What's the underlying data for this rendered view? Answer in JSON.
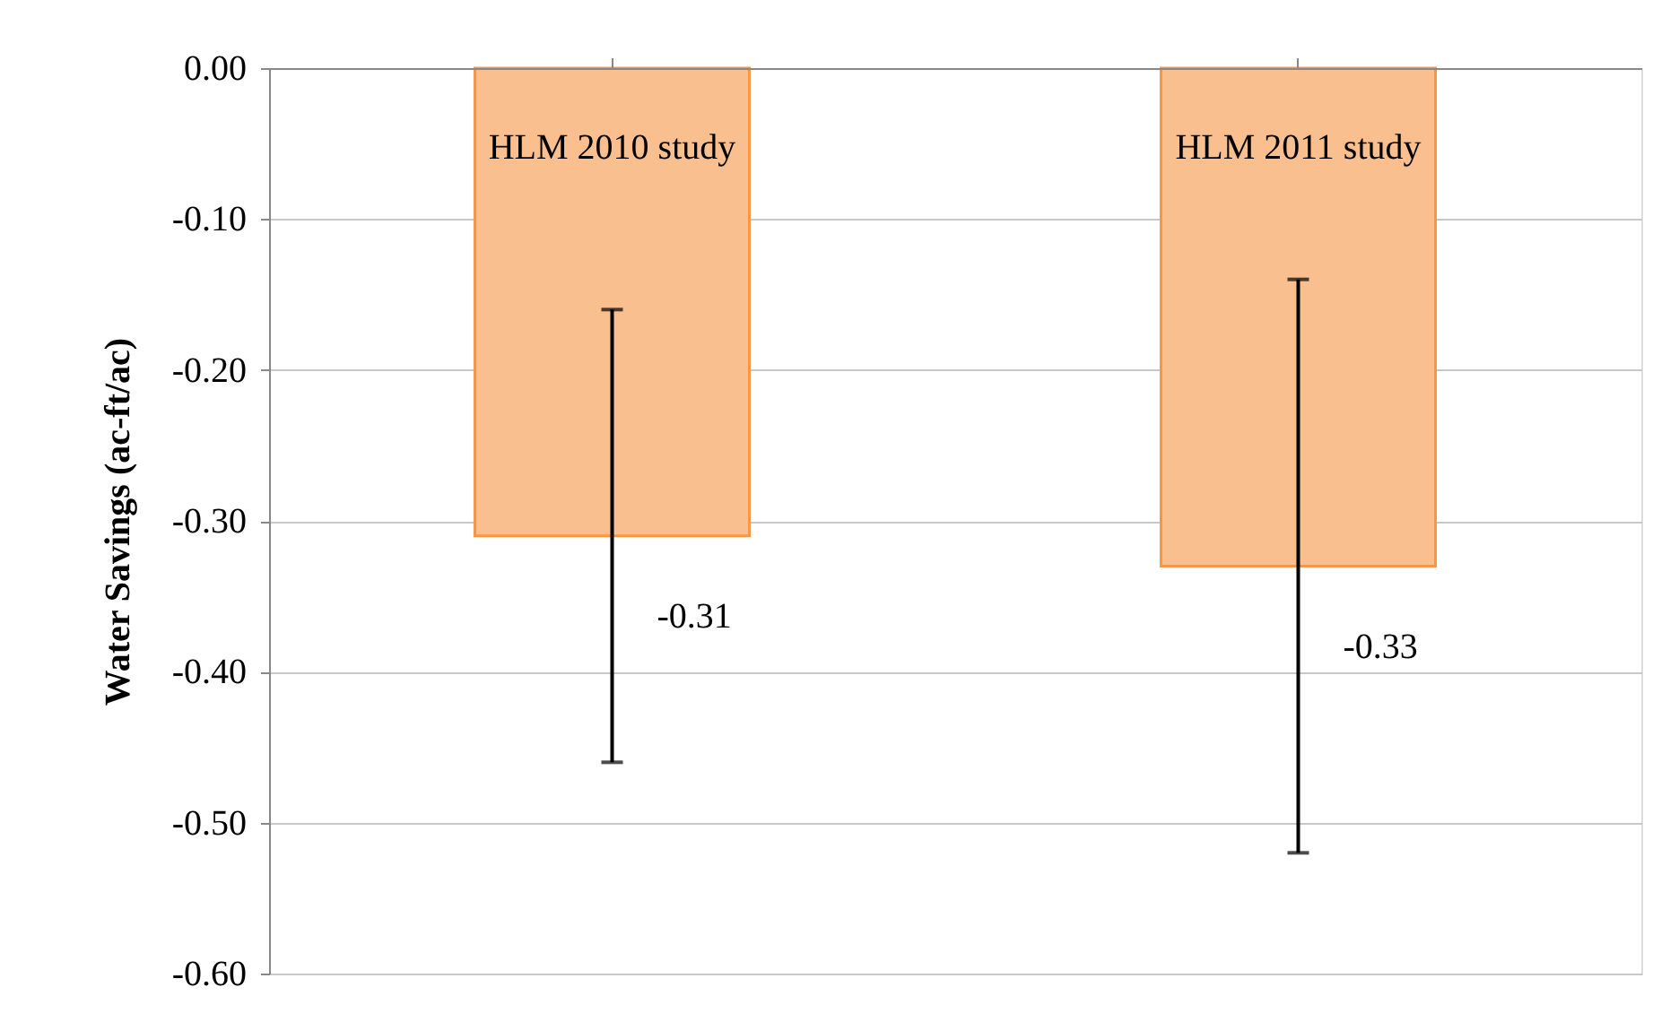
{
  "chart_data": {
    "type": "bar",
    "ylabel": "Water Savings (ac-ft/ac)",
    "categories": [
      "HLM 2010 study",
      "HLM 2011 study"
    ],
    "values": [
      -0.31,
      -0.33
    ],
    "errors": [
      [
        -0.46,
        -0.16
      ],
      [
        -0.52,
        -0.14
      ]
    ],
    "color": "#f9bf8f",
    "data_labels": true,
    "ylim": [
      -0.6,
      0
    ],
    "yticks": [
      {
        "value": -0.6,
        "label": "-0.60"
      },
      {
        "value": -0.5,
        "label": "-0.50"
      },
      {
        "value": -0.4,
        "label": "-0.40"
      },
      {
        "value": -0.3,
        "label": "-0.30"
      },
      {
        "value": -0.2,
        "label": "-0.20"
      },
      {
        "value": -0.1,
        "label": "-0.10"
      },
      {
        "value": 0,
        "label": "0.00"
      }
    ],
    "grid": "y"
  }
}
